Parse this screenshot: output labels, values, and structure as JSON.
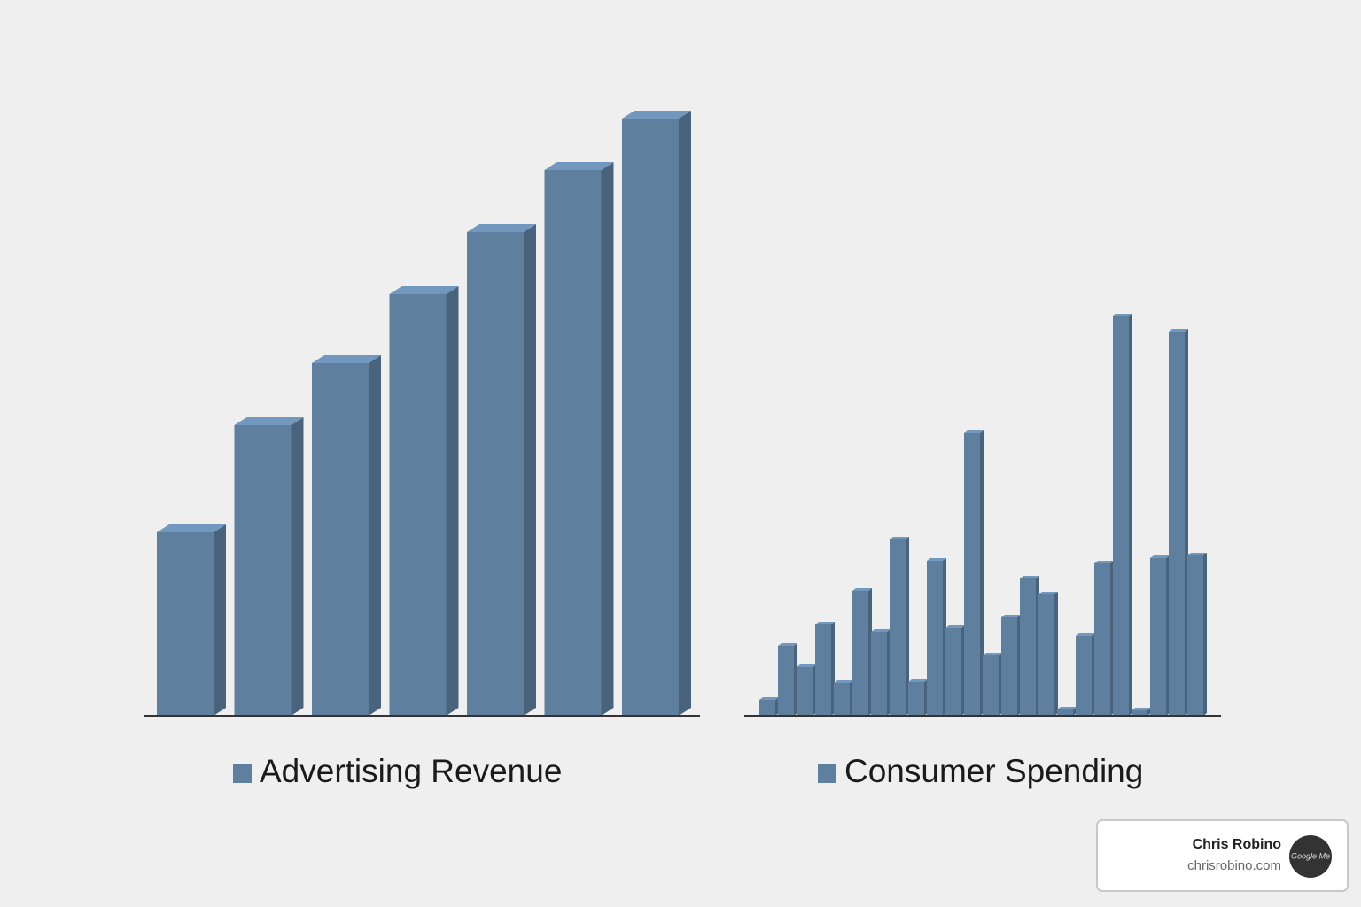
{
  "chart_data": [
    {
      "type": "bar",
      "categories": [
        null,
        null,
        null,
        null,
        null,
        null,
        null
      ],
      "series": [
        {
          "name": "Advertising Revenue",
          "color": "#5f7f9f",
          "values": [
            207,
            328,
            398,
            476,
            546,
            616,
            674
          ]
        }
      ],
      "ylim": [
        0,
        700
      ]
    },
    {
      "type": "bar",
      "categories": [
        null,
        null,
        null,
        null,
        null,
        null,
        null,
        null,
        null,
        null,
        null,
        null,
        null,
        null,
        null,
        null,
        null,
        null,
        null,
        null,
        null,
        null,
        null,
        null
      ],
      "series": [
        {
          "name": "Consumer Spending",
          "color": "#5f7f9f",
          "values": [
            18,
            79,
            55,
            103,
            37,
            141,
            95,
            199,
            38,
            175,
            99,
            319,
            68,
            111,
            155,
            137,
            7,
            90,
            172,
            451,
            6,
            178,
            433,
            181
          ]
        }
      ],
      "ylim": [
        0,
        700
      ]
    }
  ],
  "badge": {
    "name": "Chris Robino",
    "url": "chrisrobino.com",
    "logo": "Google Me"
  }
}
